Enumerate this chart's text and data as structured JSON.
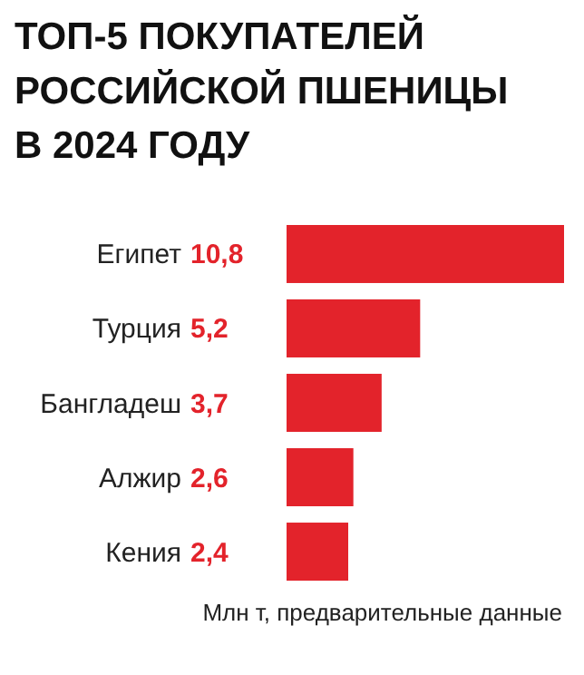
{
  "chart_data": {
    "type": "bar",
    "orientation": "horizontal",
    "title": "ТОП-5 ПОКУПАТЕЛЕЙ РОССИЙСКОЙ ПШЕНИЦЫ В 2024 ГОДУ",
    "categories": [
      "Египет",
      "Турция",
      "Бангладеш",
      "Алжир",
      "Кения"
    ],
    "values": [
      10.8,
      5.2,
      3.7,
      2.6,
      2.4
    ],
    "value_labels": [
      "10,8",
      "5,2",
      "3,7",
      "2,6",
      "2,4"
    ],
    "color": "#e3232b",
    "annotations": [
      "Млн т, предварительные данные"
    ]
  }
}
